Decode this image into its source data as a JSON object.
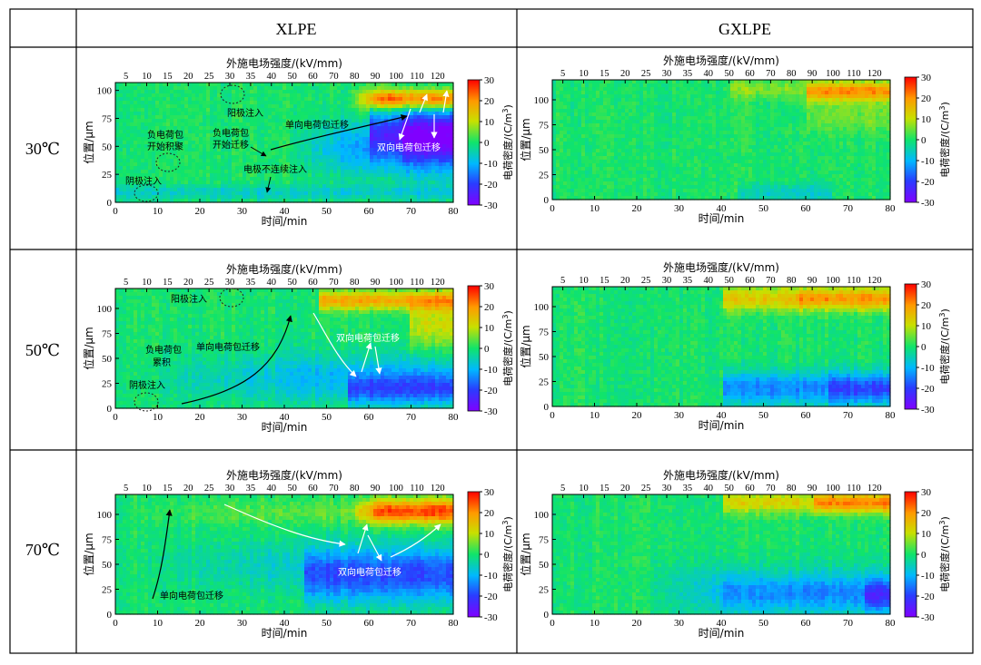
{
  "table": {
    "col_headers": [
      "XLPE",
      "GXLPE"
    ],
    "row_headers": [
      "30℃",
      "50℃",
      "70℃"
    ]
  },
  "axes": {
    "xlabel": "时间/min",
    "ylabel": "位置/μm",
    "top_label": "外施电场强度/(kV/mm)",
    "cbar_label_prefix": "电荷密度/(C/m",
    "cbar_label_sup": "3",
    "cbar_label_suffix": ")",
    "x_ticks": [
      "0",
      "10",
      "20",
      "30",
      "40",
      "50",
      "60",
      "70",
      "80"
    ],
    "y_ticks": [
      "0",
      "25",
      "50",
      "75",
      "100"
    ],
    "top_ticks": [
      "5",
      "10",
      "15",
      "20",
      "25",
      "30",
      "35",
      "40",
      "50",
      "60",
      "70",
      "80",
      "90",
      "100",
      "110",
      "120"
    ],
    "cbar_ticks": [
      "30",
      "20",
      "10",
      "0",
      "-10",
      "-20",
      "-30"
    ]
  },
  "chart_data": [
    {
      "type": "heatmap",
      "panel": "XLPE-30C",
      "material": "XLPE",
      "temperature": "30℃",
      "xlabel": "时间/min",
      "ylabel": "位置/μm",
      "xlim": [
        0,
        80
      ],
      "ylim": [
        0,
        107
      ],
      "colorbar": {
        "label": "电荷密度/(C/m3)",
        "range": [
          -30,
          30
        ]
      },
      "annotations": [
        "阳极注入",
        "单向电荷包迁移",
        "负电荷包",
        "开始积聚",
        "负电荷包",
        "开始迁移",
        "电极不连续注入",
        "双向电荷包迁移",
        "阴极注入"
      ]
    },
    {
      "type": "heatmap",
      "panel": "GXLPE-30C",
      "material": "GXLPE",
      "temperature": "30℃",
      "xlabel": "时间/min",
      "ylabel": "位置/μm",
      "xlim": [
        0,
        80
      ],
      "ylim": [
        0,
        120
      ],
      "colorbar": {
        "label": "电荷密度/(C/m3)",
        "range": [
          -30,
          30
        ]
      },
      "annotations": []
    },
    {
      "type": "heatmap",
      "panel": "XLPE-50C",
      "material": "XLPE",
      "temperature": "50℃",
      "xlabel": "时间/min",
      "ylabel": "位置/μm",
      "xlim": [
        0,
        80
      ],
      "ylim": [
        0,
        120
      ],
      "colorbar": {
        "label": "电荷密度/(C/m3)",
        "range": [
          -30,
          30
        ]
      },
      "annotations": [
        "阳极注入",
        "单向电荷包迁移",
        "负电荷包",
        "累积",
        "双向电荷包迁移",
        "阴极注入"
      ]
    },
    {
      "type": "heatmap",
      "panel": "GXLPE-50C",
      "material": "GXLPE",
      "temperature": "50℃",
      "xlabel": "时间/min",
      "ylabel": "位置/μm",
      "xlim": [
        0,
        80
      ],
      "ylim": [
        0,
        120
      ],
      "colorbar": {
        "label": "电荷密度/(C/m3)",
        "range": [
          -30,
          30
        ]
      },
      "annotations": []
    },
    {
      "type": "heatmap",
      "panel": "XLPE-70C",
      "material": "XLPE",
      "temperature": "70℃",
      "xlabel": "时间/min",
      "ylabel": "位置/μm",
      "xlim": [
        0,
        80
      ],
      "ylim": [
        0,
        120
      ],
      "colorbar": {
        "label": "电荷密度/(C/m3)",
        "range": [
          -30,
          30
        ]
      },
      "annotations": [
        "双向电荷包迁移",
        "单向电荷包迁移"
      ]
    },
    {
      "type": "heatmap",
      "panel": "GXLPE-70C",
      "material": "GXLPE",
      "temperature": "70℃",
      "xlabel": "时间/min",
      "ylabel": "位置/μm",
      "xlim": [
        0,
        80
      ],
      "ylim": [
        0,
        120
      ],
      "colorbar": {
        "label": "电荷密度/(C/m3)",
        "range": [
          -30,
          30
        ]
      },
      "annotations": []
    }
  ]
}
